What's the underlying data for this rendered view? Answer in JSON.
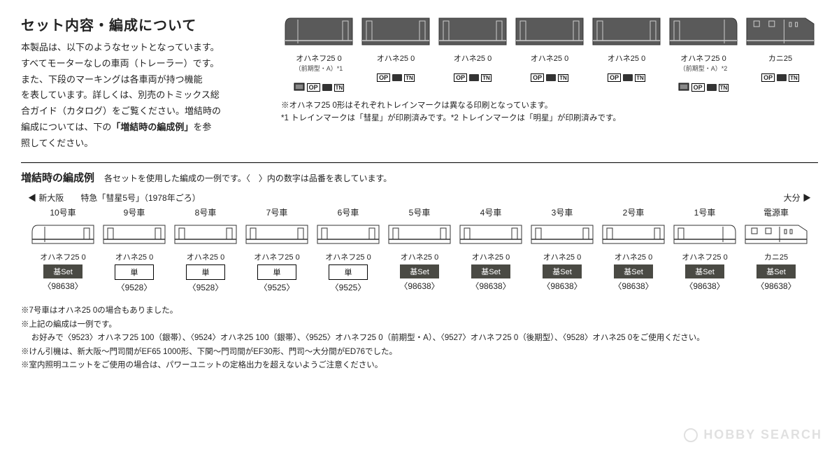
{
  "heading": "セット内容・編成について",
  "intro_line1": "本製品は、以下のようなセットとなっています。",
  "intro_line2": "すべてモーターなしの車両（トレーラー）です。",
  "intro_line3": "また、下段のマーキングは各車両が持つ機能",
  "intro_line4": "を表しています。詳しくは、別売のトミックス総",
  "intro_line5": "合ガイド（カタログ）をご覧ください。増結時の",
  "intro_line6a": "編成については、下の",
  "intro_line6b": "「増結時の編成例」",
  "intro_line6c": "を参",
  "intro_line7": "照してください。",
  "set_cars": [
    {
      "label": "オハネフ25 0",
      "sublabel": "（前期型・A）*1",
      "type": "end-left",
      "hasMark": true
    },
    {
      "label": "オハネ25 0",
      "sublabel": "",
      "type": "mid",
      "hasMark": false
    },
    {
      "label": "オハネ25 0",
      "sublabel": "",
      "type": "mid",
      "hasMark": false
    },
    {
      "label": "オハネ25 0",
      "sublabel": "",
      "type": "mid",
      "hasMark": false
    },
    {
      "label": "オハネ25 0",
      "sublabel": "",
      "type": "mid",
      "hasMark": false
    },
    {
      "label": "オハネフ25 0",
      "sublabel": "（前期型・A）*2",
      "type": "end-right",
      "hasMark": true
    },
    {
      "label": "カニ25",
      "sublabel": "",
      "type": "kani",
      "hasMark": false
    }
  ],
  "right_note1": "※オハネフ25 0形はそれぞれトレインマークは異なる印刷となっています。",
  "right_note2": "*1 トレインマークは「彗星」が印刷済みです。*2 トレインマークは「明星」が印刷済みです。",
  "formation_title": "増結時の編成例",
  "formation_sub": "各セットを使用した編成の一例です。〈　〉内の数字は品番を表しています。",
  "dir_left": "◀ 新大阪　　特急「彗星5号」（1978年ごろ）",
  "dir_right": "大分 ▶",
  "formation_cars": [
    {
      "num": "10号車",
      "label": "オハネフ25 0",
      "badge": "基Set",
      "badge_style": "dark",
      "prod": "〈98638〉",
      "type": "end-left-f"
    },
    {
      "num": "9号車",
      "label": "オハネ25 0",
      "badge": "単",
      "badge_style": "light",
      "prod": "〈9528〉",
      "type": "mid-f"
    },
    {
      "num": "8号車",
      "label": "オハネ25 0",
      "badge": "単",
      "badge_style": "light",
      "prod": "〈9528〉",
      "type": "mid-f"
    },
    {
      "num": "7号車",
      "label": "オハネフ25 0",
      "badge": "単",
      "badge_style": "light",
      "prod": "〈9525〉",
      "type": "mid-f"
    },
    {
      "num": "6号車",
      "label": "オハネフ25 0",
      "badge": "単",
      "badge_style": "light",
      "prod": "〈9525〉",
      "type": "mid-f"
    },
    {
      "num": "5号車",
      "label": "オハネ25 0",
      "badge": "基Set",
      "badge_style": "dark",
      "prod": "〈98638〉",
      "type": "mid-f"
    },
    {
      "num": "4号車",
      "label": "オハネ25 0",
      "badge": "基Set",
      "badge_style": "dark",
      "prod": "〈98638〉",
      "type": "mid-f"
    },
    {
      "num": "3号車",
      "label": "オハネ25 0",
      "badge": "基Set",
      "badge_style": "dark",
      "prod": "〈98638〉",
      "type": "mid-f"
    },
    {
      "num": "2号車",
      "label": "オハネ25 0",
      "badge": "基Set",
      "badge_style": "dark",
      "prod": "〈98638〉",
      "type": "mid-f"
    },
    {
      "num": "1号車",
      "label": "オハネフ25 0",
      "badge": "基Set",
      "badge_style": "dark",
      "prod": "〈98638〉",
      "type": "end-right-f"
    },
    {
      "num": "電源車",
      "label": "カニ25",
      "badge": "基Set",
      "badge_style": "dark",
      "prod": "〈98638〉",
      "type": "kani-f"
    }
  ],
  "bottom_note1": "※7号車はオハネ25 0の場合もありました。",
  "bottom_note2": "※上記の編成は一例です。",
  "bottom_note3": "　 お好みで〈9523〉オハネフ25 100（銀帯）、〈9524〉オハネ25 100（銀帯）、〈9525〉オハネフ25 0（前期型・A）、〈9527〉オハネフ25 0（後期型）、〈9528〉オハネ25 0をご使用ください。",
  "bottom_note4": "※けん引機は、新大阪～門司間がEF65 1000形、下関～門司間がEF30形、門司～大分間がED76でした。",
  "bottom_note5": "※室内照明ユニットをご使用の場合は、パワーユニットの定格出力を超えないようご注意ください。",
  "watermark": "HOBBY SEARCH",
  "colors": {
    "car_dark": "#5a5a5a",
    "car_outline": "#fff",
    "badge_dark_bg": "#4a4a44",
    "text": "#222222"
  }
}
